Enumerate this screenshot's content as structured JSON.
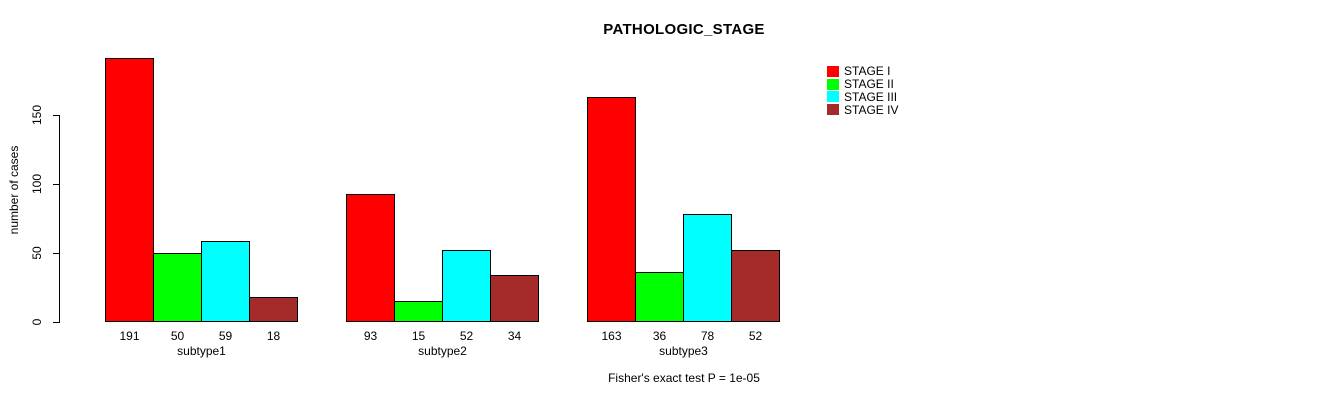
{
  "chart_data": {
    "type": "bar",
    "title": "PATHOLOGIC_STAGE",
    "ylabel": "number of cases",
    "xlabel": "",
    "caption": "Fisher's exact test P = 1e-05",
    "categories": [
      "subtype1",
      "subtype2",
      "subtype3"
    ],
    "series": [
      {
        "name": "STAGE I",
        "color": "#ff0000",
        "values": [
          191,
          93,
          163
        ]
      },
      {
        "name": "STAGE II",
        "color": "#00ff00",
        "values": [
          50,
          15,
          36
        ]
      },
      {
        "name": "STAGE III",
        "color": "#00ffff",
        "values": [
          59,
          52,
          78
        ]
      },
      {
        "name": "STAGE IV",
        "color": "#a52a2a",
        "values": [
          18,
          34,
          52
        ]
      }
    ],
    "yticks": [
      0,
      50,
      100,
      150
    ],
    "ylim": [
      0,
      200
    ],
    "grid": false,
    "legend_position": "top-right",
    "bar_value_labels_shown": true
  }
}
